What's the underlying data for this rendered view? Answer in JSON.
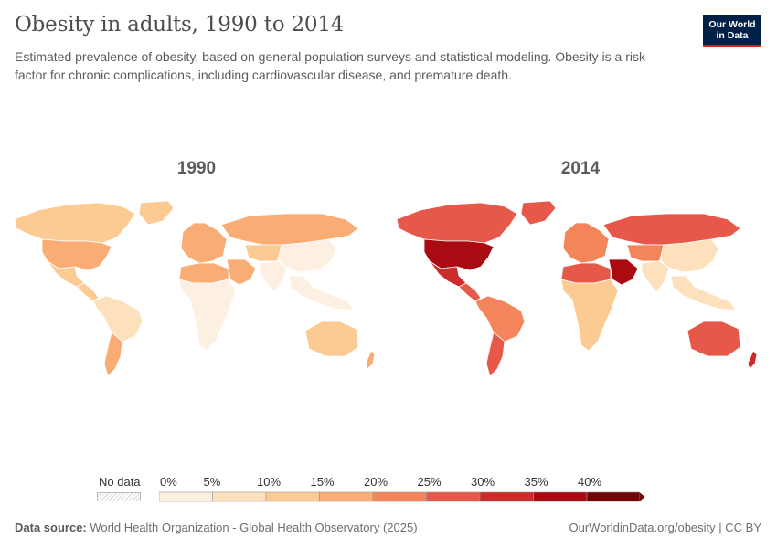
{
  "header": {
    "title": "Obesity in adults, 1990 to 2014",
    "subtitle": "Estimated prevalence of obesity, based on general population surveys and statistical modeling. Obesity is a risk factor for chronic complications, including cardiovascular disease, and premature death."
  },
  "logo": {
    "line1": "Our World",
    "line2": "in Data",
    "bg_color": "#002147",
    "accent_color": "#ce261e"
  },
  "chart_data": {
    "type": "choropleth",
    "title": "Obesity in adults, 1990 to 2014",
    "maps": [
      {
        "year": "1990",
        "regions": [
          {
            "name": "Canada",
            "value": 12
          },
          {
            "name": "United States",
            "value": 19
          },
          {
            "name": "Mexico",
            "value": 14
          },
          {
            "name": "Central America",
            "value": 11
          },
          {
            "name": "South America",
            "value": 9
          },
          {
            "name": "Argentina",
            "value": 15
          },
          {
            "name": "Europe",
            "value": 16
          },
          {
            "name": "Russia",
            "value": 16
          },
          {
            "name": "North Africa",
            "value": 17
          },
          {
            "name": "Sub-Saharan Africa",
            "value": 4
          },
          {
            "name": "Middle East",
            "value": 19
          },
          {
            "name": "Central Asia",
            "value": 10
          },
          {
            "name": "China",
            "value": 2
          },
          {
            "name": "India",
            "value": 2
          },
          {
            "name": "Southeast Asia",
            "value": 3
          },
          {
            "name": "Australia",
            "value": 14
          },
          {
            "name": "New Zealand",
            "value": 15
          },
          {
            "name": "Greenland",
            "value": 12
          }
        ]
      },
      {
        "year": "2014",
        "regions": [
          {
            "name": "Canada",
            "value": 28
          },
          {
            "name": "United States",
            "value": 36
          },
          {
            "name": "Mexico",
            "value": 30
          },
          {
            "name": "Central America",
            "value": 25
          },
          {
            "name": "South America",
            "value": 22
          },
          {
            "name": "Argentina",
            "value": 28
          },
          {
            "name": "Europe",
            "value": 24
          },
          {
            "name": "Russia",
            "value": 25
          },
          {
            "name": "North Africa",
            "value": 29
          },
          {
            "name": "Sub-Saharan Africa",
            "value": 10
          },
          {
            "name": "Middle East",
            "value": 37
          },
          {
            "name": "Central Asia",
            "value": 20
          },
          {
            "name": "China",
            "value": 7
          },
          {
            "name": "India",
            "value": 5
          },
          {
            "name": "Southeast Asia",
            "value": 6
          },
          {
            "name": "Australia",
            "value": 29
          },
          {
            "name": "New Zealand",
            "value": 32
          },
          {
            "name": "Greenland",
            "value": 25
          }
        ]
      }
    ],
    "legend": {
      "no_data_label": "No data",
      "tick_labels": [
        "0%",
        "5%",
        "10%",
        "15%",
        "20%",
        "25%",
        "30%",
        "35%",
        "40%"
      ],
      "bins": [
        {
          "min": 0,
          "max": 5,
          "color": "#fdf0e3"
        },
        {
          "min": 5,
          "max": 10,
          "color": "#fde1bc"
        },
        {
          "min": 10,
          "max": 15,
          "color": "#fccb94"
        },
        {
          "min": 15,
          "max": 20,
          "color": "#f9ad74"
        },
        {
          "min": 20,
          "max": 25,
          "color": "#f4845a"
        },
        {
          "min": 25,
          "max": 30,
          "color": "#e6584a"
        },
        {
          "min": 30,
          "max": 35,
          "color": "#cb2b2b"
        },
        {
          "min": 35,
          "max": 40,
          "color": "#aa0a11"
        },
        {
          "min": 40,
          "max": 45,
          "color": "#720508"
        }
      ]
    }
  },
  "footer": {
    "source_label": "Data source:",
    "source_text": "World Health Organization - Global Health Observatory (2025)",
    "link_text": "OurWorldinData.org/obesity | CC BY"
  }
}
